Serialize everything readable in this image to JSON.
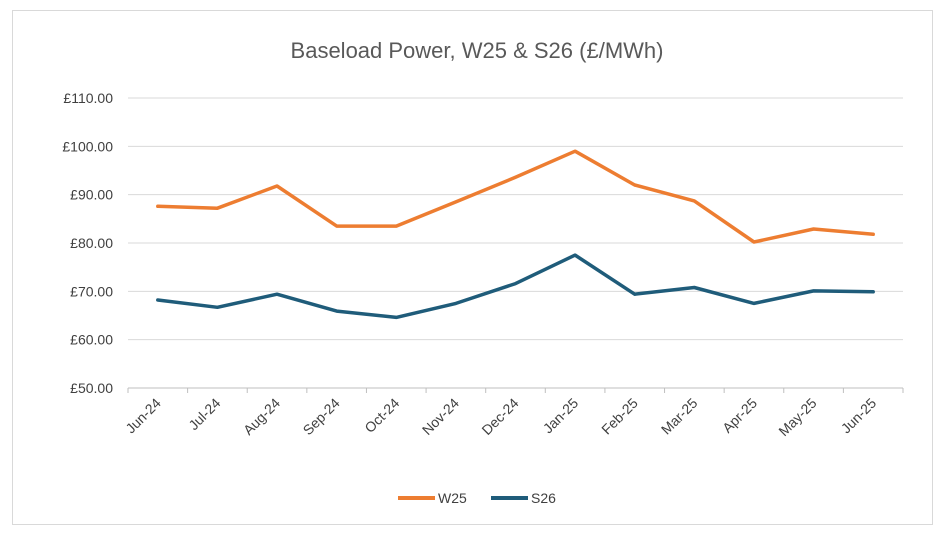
{
  "chart_data": {
    "type": "line",
    "title": "Baseload Power, W25 & S26 (£/MWh)",
    "xlabel": "",
    "ylabel": "",
    "categories": [
      "Jun-24",
      "Jul-24",
      "Aug-24",
      "Sep-24",
      "Oct-24",
      "Nov-24",
      "Dec-24",
      "Jan-25",
      "Feb-25",
      "Mar-25",
      "Apr-25",
      "May-25",
      "Jun-25"
    ],
    "ylim": [
      50,
      110
    ],
    "yticks": [
      50,
      60,
      70,
      80,
      90,
      100,
      110
    ],
    "ytick_labels": [
      "£50.00",
      "£60.00",
      "£70.00",
      "£80.00",
      "£90.00",
      "£100.00",
      "£110.00"
    ],
    "grid": true,
    "legend": "bottom",
    "series": [
      {
        "name": "W25",
        "color": "#ED7D31",
        "values": [
          87.6,
          87.2,
          91.8,
          83.5,
          83.5,
          88.5,
          93.6,
          99.0,
          92.0,
          88.7,
          80.2,
          82.9,
          81.8
        ]
      },
      {
        "name": "S26",
        "color": "#1F5C7A",
        "values": [
          68.2,
          66.7,
          69.4,
          65.9,
          64.6,
          67.5,
          71.6,
          77.5,
          69.4,
          70.8,
          67.5,
          70.1,
          69.9
        ]
      }
    ]
  }
}
